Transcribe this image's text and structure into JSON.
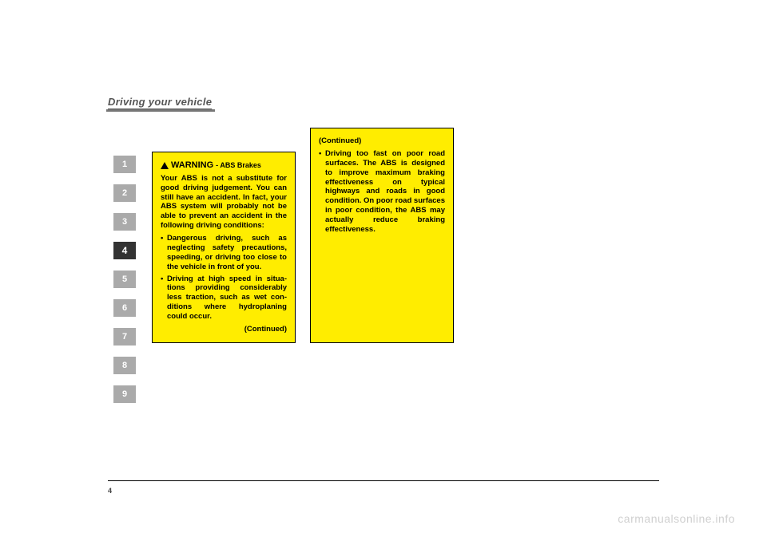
{
  "header": {
    "title": "Driving your vehicle"
  },
  "tabs": {
    "items": [
      {
        "num": "1",
        "active": false
      },
      {
        "num": "2",
        "active": false
      },
      {
        "num": "3",
        "active": false
      },
      {
        "num": "4",
        "active": true
      },
      {
        "num": "5",
        "active": false
      },
      {
        "num": "6",
        "active": false
      },
      {
        "num": "7",
        "active": false
      },
      {
        "num": "8",
        "active": false
      },
      {
        "num": "9",
        "active": false
      }
    ]
  },
  "warning1": {
    "label": "WARNING",
    "sublabel": "- ABS Brakes",
    "intro": "Your ABS is not a substitute for good driving judgement. You can still have an accident. In fact, your ABS system will prob­ably not be able to prevent an accident in the following driving conditions:",
    "bullets": [
      "Dangerous driving, such as neglecting safety precautions, speeding, or driving too close to the vehicle in front of you.",
      "Driving at high speed in situa­tions providing considerably less traction, such as wet con­ditions where hydroplaning could occur."
    ],
    "continued": "(Continued)"
  },
  "warning2": {
    "continued_top": "(Continued)",
    "bullets": [
      "Driving too fast on poor road surfaces. The ABS is designed to improve maxi­mum braking effectiveness on typical highways and roads in good condition. On poor road surfaces in poor condition, the ABS may actually reduce braking effectiveness."
    ]
  },
  "footer": {
    "page_num": "4"
  },
  "watermark": "carmanualsonline.info",
  "style": {
    "warn_bg": "#ffed00",
    "warn_border": "#000000",
    "tab_inactive_bg": "#aaaaaa",
    "tab_active_bg": "#333333",
    "page_bg": "#ffffff",
    "watermark_color": "#d0d0d0"
  }
}
